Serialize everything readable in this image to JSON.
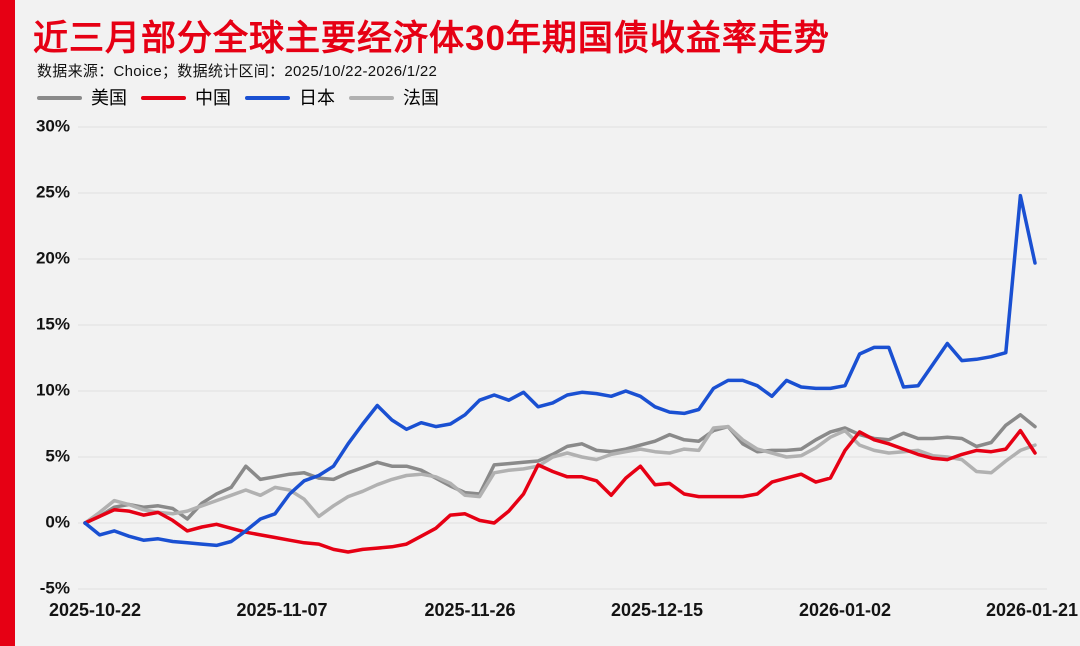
{
  "page": {
    "background": "#f2f2f2",
    "accent_bar_color": "#e60014"
  },
  "header": {
    "title": "近三月部分全球主要经济体30年期国债收益率走势",
    "title_color": "#e60014",
    "subtitle": "数据来源：Choice；数据统计区间：2025/10/22-2026/1/22"
  },
  "legend": [
    {
      "label": "美国",
      "color": "#8a8a8a"
    },
    {
      "label": "中国",
      "color": "#e60014"
    },
    {
      "label": "日本",
      "color": "#1a50d2"
    },
    {
      "label": "法国",
      "color": "#b1b1b1"
    }
  ],
  "chart_data": {
    "type": "line",
    "title": "近三月部分全球主要经济体30年期国债收益率走势",
    "xlabel": "",
    "ylabel": "",
    "unit": "%",
    "ylim": [
      -5,
      30
    ],
    "y_step": 5,
    "grid": true,
    "legend_position": "top-left",
    "y_tick_labels": [
      "30%",
      "25%",
      "20%",
      "15%",
      "10%",
      "5%",
      "0%",
      "-5%"
    ],
    "x_tick_labels": [
      "2025-10-22",
      "2025-11-07",
      "2025-11-26",
      "2025-12-15",
      "2026-01-02",
      "2026-01-21"
    ],
    "series": [
      {
        "name": "美国",
        "color": "#8a8a8a",
        "values": [
          0,
          0.5,
          1.2,
          1.4,
          1.2,
          1.3,
          1.1,
          0.3,
          1.5,
          2.2,
          2.7,
          4.3,
          3.3,
          3.5,
          3.7,
          3.8,
          3.4,
          3.3,
          3.8,
          4.2,
          4.6,
          4.3,
          4.3,
          4.0,
          3.4,
          2.8,
          2.3,
          2.2,
          4.4,
          4.5,
          4.6,
          4.7,
          5.2,
          5.8,
          6.0,
          5.5,
          5.4,
          5.6,
          5.9,
          6.2,
          6.7,
          6.3,
          6.2,
          7.0,
          7.3,
          6.0,
          5.4,
          5.5,
          5.5,
          5.6,
          6.3,
          6.9,
          7.2,
          6.7,
          6.4,
          6.3,
          6.8,
          6.4,
          6.4,
          6.5,
          6.4,
          5.8,
          6.1,
          7.4,
          8.2,
          7.3
        ]
      },
      {
        "name": "中国",
        "color": "#e60014",
        "values": [
          0,
          0.5,
          1.0,
          0.9,
          0.6,
          0.8,
          0.2,
          -0.6,
          -0.3,
          -0.1,
          -0.4,
          -0.7,
          -0.9,
          -1.1,
          -1.3,
          -1.5,
          -1.6,
          -2.0,
          -2.2,
          -2.0,
          -1.9,
          -1.8,
          -1.6,
          -1.0,
          -0.4,
          0.6,
          0.7,
          0.2,
          0.0,
          0.9,
          2.2,
          4.4,
          3.9,
          3.5,
          3.5,
          3.2,
          2.1,
          3.4,
          4.3,
          2.9,
          3.0,
          2.2,
          2.0,
          2.0,
          2.0,
          2.0,
          2.2,
          3.1,
          3.4,
          3.7,
          3.1,
          3.4,
          5.5,
          6.9,
          6.3,
          6.0,
          5.6,
          5.2,
          4.9,
          4.8,
          5.2,
          5.5,
          5.4,
          5.6,
          7.0,
          5.3
        ]
      },
      {
        "name": "日本",
        "color": "#1a50d2",
        "values": [
          0,
          -0.9,
          -0.6,
          -1.0,
          -1.3,
          -1.2,
          -1.4,
          -1.5,
          -1.6,
          -1.7,
          -1.4,
          -0.6,
          0.3,
          0.7,
          2.2,
          3.2,
          3.6,
          4.3,
          6.0,
          7.5,
          8.9,
          7.8,
          7.1,
          7.6,
          7.3,
          7.5,
          8.2,
          9.3,
          9.7,
          9.3,
          9.9,
          8.8,
          9.1,
          9.7,
          9.9,
          9.8,
          9.6,
          10.0,
          9.6,
          8.8,
          8.4,
          8.3,
          8.6,
          10.2,
          10.8,
          10.8,
          10.4,
          9.6,
          10.8,
          10.3,
          10.2,
          10.2,
          10.4,
          12.8,
          13.3,
          13.3,
          10.3,
          10.4,
          12.0,
          13.6,
          12.3,
          12.4,
          12.6,
          12.9,
          24.8,
          19.7
        ]
      },
      {
        "name": "法国",
        "color": "#b1b1b1",
        "values": [
          0,
          0.8,
          1.7,
          1.4,
          1.0,
          0.8,
          0.7,
          0.9,
          1.3,
          1.7,
          2.1,
          2.5,
          2.1,
          2.7,
          2.5,
          1.8,
          0.5,
          1.3,
          2.0,
          2.4,
          2.9,
          3.3,
          3.6,
          3.7,
          3.5,
          3.0,
          2.1,
          2.0,
          3.8,
          4.0,
          4.1,
          4.3,
          5.0,
          5.3,
          5.0,
          4.8,
          5.2,
          5.4,
          5.6,
          5.4,
          5.3,
          5.6,
          5.5,
          7.2,
          7.3,
          6.3,
          5.6,
          5.3,
          5.0,
          5.1,
          5.7,
          6.5,
          7.0,
          5.9,
          5.5,
          5.3,
          5.4,
          5.5,
          5.1,
          5.0,
          4.8,
          3.9,
          3.8,
          4.7,
          5.5,
          5.9
        ]
      }
    ]
  }
}
